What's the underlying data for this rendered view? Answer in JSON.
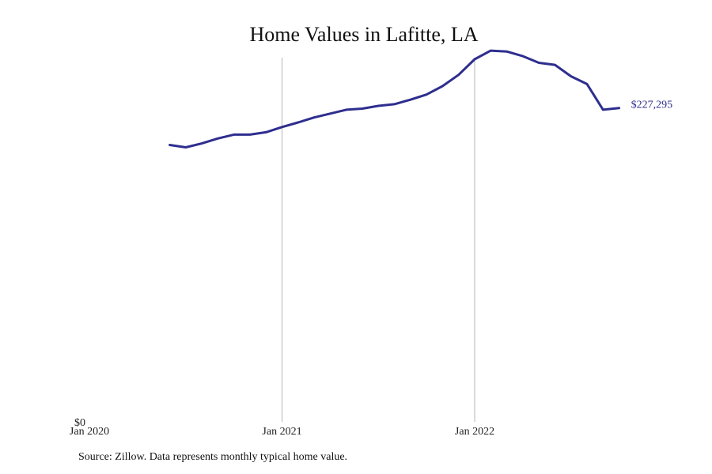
{
  "chart_data": {
    "type": "line",
    "title": "Home Values in Lafitte, LA",
    "xlabel": "",
    "ylabel": "",
    "x_ticks": [
      "Jan 2020",
      "Jan 2021",
      "Jan 2022"
    ],
    "y_ticks": [
      "$0"
    ],
    "ylim": [
      0,
      262000
    ],
    "xlim": [
      "2020-01",
      "2022-12"
    ],
    "grid": "vertical at Jan 2021 and Jan 2022",
    "series": [
      {
        "color": "#2e2e8f",
        "x": [
          "2020-06",
          "2020-07",
          "2020-08",
          "2020-09",
          "2020-10",
          "2020-11",
          "2020-12",
          "2021-01",
          "2021-02",
          "2021-03",
          "2021-04",
          "2021-05",
          "2021-06",
          "2021-07",
          "2021-08",
          "2021-09",
          "2021-10",
          "2021-11",
          "2021-12",
          "2022-01",
          "2022-02",
          "2022-03",
          "2022-04",
          "2022-05",
          "2022-06",
          "2022-07",
          "2022-08",
          "2022-09",
          "2022-10"
        ],
        "values": [
          200500,
          198800,
          201600,
          205200,
          208000,
          208000,
          209700,
          213500,
          216800,
          220400,
          223200,
          226000,
          226800,
          228800,
          230000,
          233300,
          237000,
          243100,
          251300,
          262600,
          268800,
          268200,
          264800,
          260000,
          258500,
          250200,
          244600,
          226000,
          227295
        ]
      }
    ],
    "end_label": "$227,295"
  },
  "source_note": "Source: Zillow. Data represents monthly typical home value."
}
